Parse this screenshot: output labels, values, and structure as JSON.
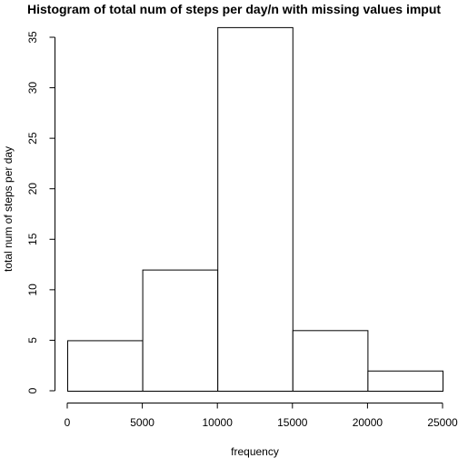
{
  "chart_data": {
    "type": "bar",
    "title": "Histogram of total num of steps per day/n with missing values imput",
    "xlabel": "frequency",
    "ylabel": "total num of steps per day",
    "bins": [
      {
        "from": 0,
        "to": 5000,
        "count": 5
      },
      {
        "from": 5000,
        "to": 10000,
        "count": 12
      },
      {
        "from": 10000,
        "to": 15000,
        "count": 36
      },
      {
        "from": 15000,
        "to": 20000,
        "count": 6
      },
      {
        "from": 20000,
        "to": 25000,
        "count": 2
      }
    ],
    "xlim": [
      0,
      25000
    ],
    "ylim": [
      0,
      35
    ],
    "x_ticks": [
      "0",
      "5000",
      "10000",
      "15000",
      "20000",
      "25000"
    ],
    "y_ticks": [
      "0",
      "5",
      "10",
      "15",
      "20",
      "25",
      "30",
      "35"
    ],
    "grid": false,
    "colors": {
      "bar_fill": "#ffffff",
      "bar_stroke": "#000000"
    }
  }
}
